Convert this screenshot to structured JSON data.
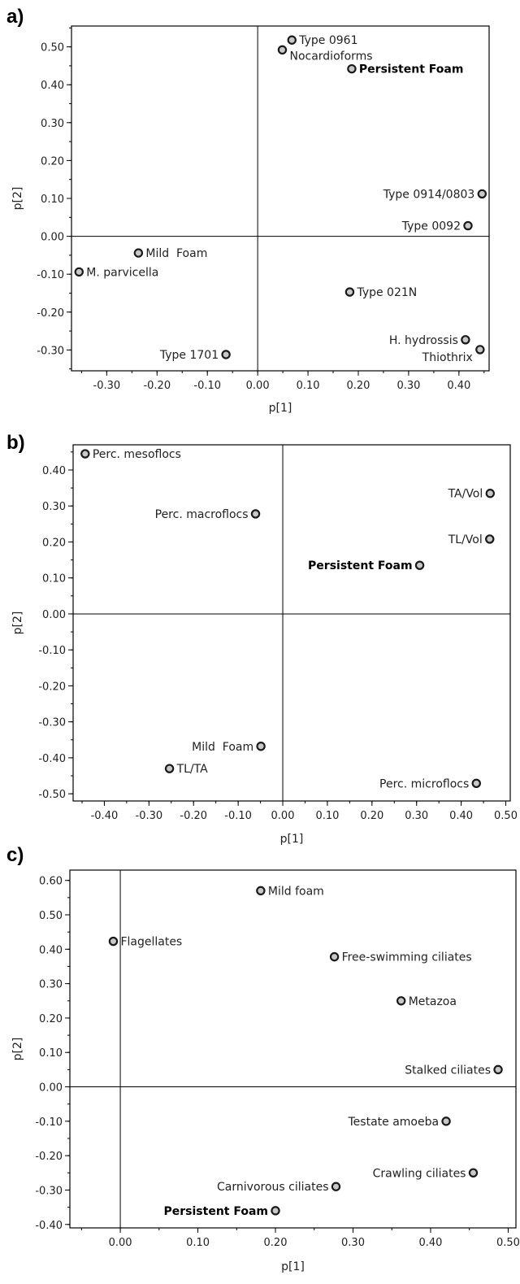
{
  "chart_data": [
    {
      "type": "scatter",
      "panel_label": "a)",
      "xlabel": "p[1]",
      "ylabel": "p[2]",
      "xlim": [
        -0.37,
        0.46
      ],
      "ylim": [
        -0.355,
        0.555
      ],
      "x_ticks": [
        -0.3,
        -0.2,
        -0.1,
        0.0,
        0.1,
        0.2,
        0.3,
        0.4
      ],
      "x_tick_labels": [
        "-0.30",
        "-0.20",
        "-0.10",
        "0.00",
        "0.10",
        "0.20",
        "0.30",
        "0.40"
      ],
      "y_ticks": [
        -0.3,
        -0.2,
        -0.1,
        0.0,
        0.1,
        0.2,
        0.3,
        0.4,
        0.5
      ],
      "y_tick_labels": [
        "-0.30",
        "-0.20",
        "-0.10",
        "0.00",
        "0.10",
        "0.20",
        "0.30",
        "0.40",
        "0.50"
      ],
      "grid": false,
      "points": [
        {
          "label": "Type 0961",
          "x": 0.068,
          "y": 0.518,
          "anchor": "right",
          "bold": false
        },
        {
          "label": "Nocardioforms",
          "x": 0.049,
          "y": 0.492,
          "anchor": "right-below",
          "bold": false
        },
        {
          "label": "Persistent Foam",
          "x": 0.187,
          "y": 0.442,
          "anchor": "right",
          "bold": true
        },
        {
          "label": "Type 0914/0803",
          "x": 0.446,
          "y": 0.112,
          "anchor": "left",
          "bold": false
        },
        {
          "label": "Type 0092",
          "x": 0.418,
          "y": 0.028,
          "anchor": "left",
          "bold": false
        },
        {
          "label": "Mild  Foam",
          "x": -0.237,
          "y": -0.044,
          "anchor": "right",
          "bold": false
        },
        {
          "label": "M. parvicella",
          "x": -0.355,
          "y": -0.094,
          "anchor": "right",
          "bold": false
        },
        {
          "label": "Type 021N",
          "x": 0.183,
          "y": -0.147,
          "anchor": "right",
          "bold": false
        },
        {
          "label": "H. hydrossis",
          "x": 0.413,
          "y": -0.273,
          "anchor": "left",
          "bold": false
        },
        {
          "label": "Thiothrix",
          "x": 0.442,
          "y": -0.299,
          "anchor": "left-below",
          "bold": false
        },
        {
          "label": "Type 1701",
          "x": -0.063,
          "y": -0.312,
          "anchor": "left",
          "bold": false
        }
      ]
    },
    {
      "type": "scatter",
      "panel_label": "b)",
      "xlabel": "p[1]",
      "ylabel": "p[2]",
      "xlim": [
        -0.47,
        0.51
      ],
      "ylim": [
        -0.52,
        0.47
      ],
      "x_ticks": [
        -0.4,
        -0.3,
        -0.2,
        -0.1,
        0.0,
        0.1,
        0.2,
        0.3,
        0.4,
        0.5
      ],
      "x_tick_labels": [
        "-0.40",
        "-0.30",
        "-0.20",
        "-0.10",
        "0.00",
        "0.10",
        "0.20",
        "0.30",
        "0.40",
        "0.50"
      ],
      "y_ticks": [
        -0.5,
        -0.4,
        -0.3,
        -0.2,
        -0.1,
        0.0,
        0.1,
        0.2,
        0.3,
        0.4
      ],
      "y_tick_labels": [
        "-0.50",
        "-0.40",
        "-0.30",
        "-0.20",
        "-0.10",
        "0.00",
        "0.10",
        "0.20",
        "0.30",
        "0.40"
      ],
      "grid": false,
      "points": [
        {
          "label": "Perc. mesoflocs",
          "x": -0.443,
          "y": 0.445,
          "anchor": "right",
          "bold": false
        },
        {
          "label": "Perc. macroflocs",
          "x": -0.061,
          "y": 0.278,
          "anchor": "left",
          "bold": false
        },
        {
          "label": "TA/Vol",
          "x": 0.465,
          "y": 0.335,
          "anchor": "left",
          "bold": false
        },
        {
          "label": "TL/Vol",
          "x": 0.464,
          "y": 0.208,
          "anchor": "left",
          "bold": false
        },
        {
          "label": "Persistent Foam",
          "x": 0.307,
          "y": 0.135,
          "anchor": "left",
          "bold": true
        },
        {
          "label": "Mild  Foam",
          "x": -0.049,
          "y": -0.368,
          "anchor": "left",
          "bold": false
        },
        {
          "label": "TL/TA",
          "x": -0.254,
          "y": -0.43,
          "anchor": "right",
          "bold": false
        },
        {
          "label": "Perc. microflocs",
          "x": 0.434,
          "y": -0.471,
          "anchor": "left",
          "bold": false
        }
      ]
    },
    {
      "type": "scatter",
      "panel_label": "c)",
      "xlabel": "p[1]",
      "ylabel": "p[2]",
      "xlim": [
        -0.065,
        0.51
      ],
      "ylim": [
        -0.41,
        0.63
      ],
      "x_ticks": [
        0.0,
        0.1,
        0.2,
        0.3,
        0.4,
        0.5
      ],
      "x_tick_labels": [
        "0.00",
        "0.10",
        "0.20",
        "0.30",
        "0.40",
        "0.50"
      ],
      "y_ticks": [
        -0.4,
        -0.3,
        -0.2,
        -0.1,
        0.0,
        0.1,
        0.2,
        0.3,
        0.4,
        0.5,
        0.6
      ],
      "y_tick_labels": [
        "-0.40",
        "-0.30",
        "-0.20",
        "-0.10",
        "0.00",
        "0.10",
        "0.20",
        "0.30",
        "0.40",
        "0.50",
        "0.60"
      ],
      "grid": false,
      "points": [
        {
          "label": "Mild foam",
          "x": 0.181,
          "y": 0.57,
          "anchor": "right",
          "bold": false
        },
        {
          "label": "Flagellates",
          "x": -0.009,
          "y": 0.423,
          "anchor": "right",
          "bold": false
        },
        {
          "label": "Free-swimming ciliates",
          "x": 0.276,
          "y": 0.378,
          "anchor": "right",
          "bold": false
        },
        {
          "label": "Metazoa",
          "x": 0.362,
          "y": 0.25,
          "anchor": "right",
          "bold": false
        },
        {
          "label": "Stalked ciliates",
          "x": 0.487,
          "y": 0.05,
          "anchor": "left",
          "bold": false
        },
        {
          "label": "Testate amoeba",
          "x": 0.42,
          "y": -0.1,
          "anchor": "left",
          "bold": false
        },
        {
          "label": "Crawling ciliates",
          "x": 0.455,
          "y": -0.25,
          "anchor": "left",
          "bold": false
        },
        {
          "label": "Carnivorous ciliates",
          "x": 0.278,
          "y": -0.29,
          "anchor": "left",
          "bold": false
        },
        {
          "label": "Persistent Foam",
          "x": 0.2,
          "y": -0.36,
          "anchor": "left",
          "bold": true
        }
      ]
    }
  ]
}
